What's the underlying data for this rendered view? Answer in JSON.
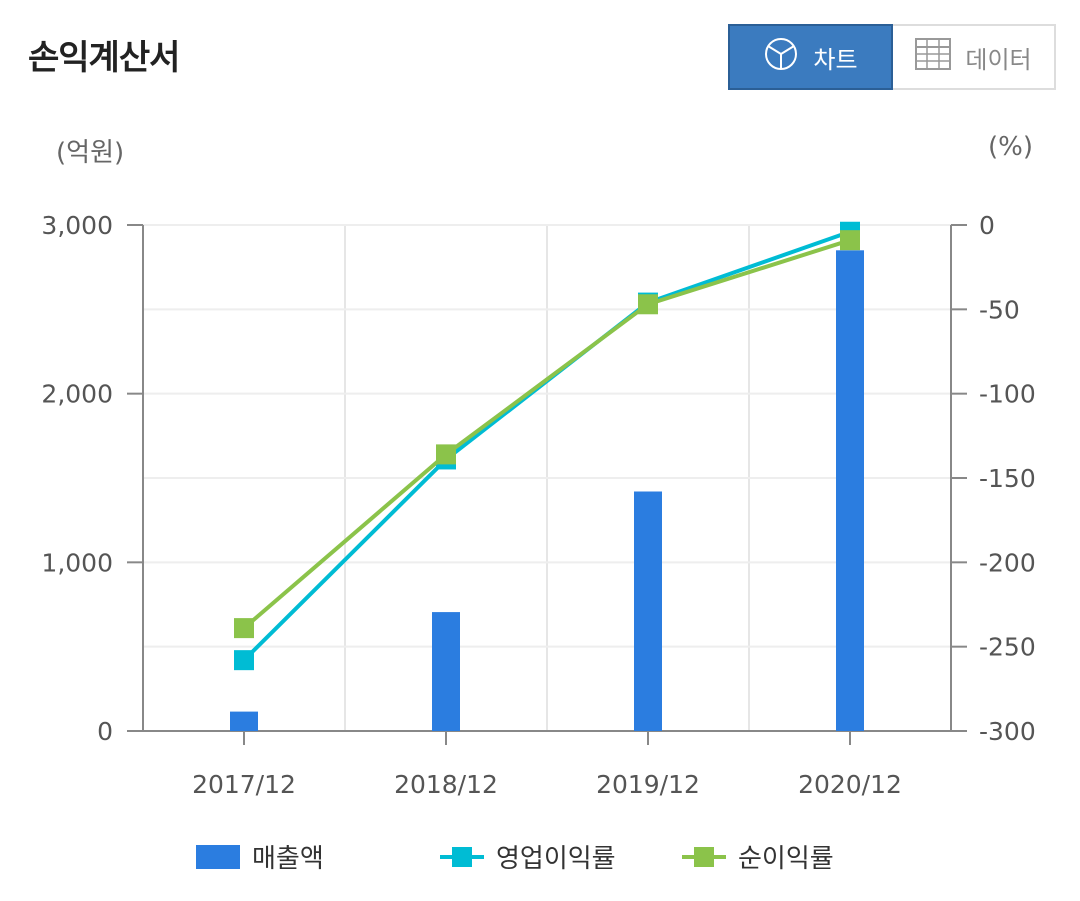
{
  "header": {
    "title": "손익계산서",
    "toggle": {
      "chart_label": "차트",
      "data_label": "데이터",
      "active": "chart"
    }
  },
  "colors": {
    "bar": "#2b7de0",
    "operating": "#00bcd4",
    "net": "#8bc34a",
    "toggle_active": "#3b7bbf"
  },
  "chart_data": {
    "type": "bar",
    "categories": [
      "2017/12",
      "2018/12",
      "2019/12",
      "2020/12"
    ],
    "left_unit": "(억원)",
    "right_unit": "(%)",
    "left_ylim": [
      0,
      3000
    ],
    "right_ylim": [
      -300,
      0
    ],
    "left_ticks": [
      "0",
      "1,000",
      "2,000",
      "3,000"
    ],
    "right_ticks": [
      "-300",
      "-250",
      "-200",
      "-150",
      "-100",
      "-50",
      "0"
    ],
    "grid": true,
    "legend_position": "bottom",
    "series": [
      {
        "name": "매출액",
        "type": "bar",
        "axis": "left",
        "values": [
          115,
          705,
          1420,
          2850
        ]
      },
      {
        "name": "영업이익률",
        "type": "line",
        "axis": "right",
        "values": [
          -258,
          -139,
          -46,
          -4
        ]
      },
      {
        "name": "순이익률",
        "type": "line",
        "axis": "right",
        "values": [
          -239,
          -136,
          -47,
          -9
        ]
      }
    ]
  }
}
